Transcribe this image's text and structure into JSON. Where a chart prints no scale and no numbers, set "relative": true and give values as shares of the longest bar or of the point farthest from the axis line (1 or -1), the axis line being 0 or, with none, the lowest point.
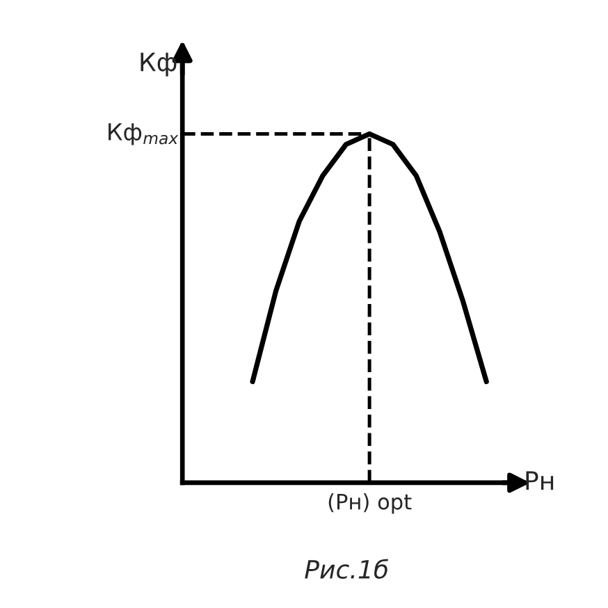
{
  "chart_data": {
    "type": "line",
    "relative": true,
    "ylabel": "Кф",
    "xlabel": "Рн",
    "categories": [
      null,
      null,
      null,
      null,
      null,
      null,
      null,
      null,
      null,
      null,
      null,
      null,
      null,
      null
    ],
    "series": [
      {
        "color": "#000000",
        "values": [
          null,
          null,
          null,
          0.29,
          0.55,
          0.75,
          0.88,
          0.97,
          1.0,
          0.97,
          0.88,
          0.72,
          0.52,
          0.29
        ]
      }
    ],
    "ref_lines": [
      {
        "axis": "y",
        "value": 1.0,
        "label": "Кф$_{max}$",
        "line_style": "dashed",
        "color": "#000000"
      }
    ],
    "annotations": [
      "(Рн) opt",
      "Рис.1б"
    ],
    "legend": false,
    "marker": "none",
    "line_style": "solid"
  }
}
